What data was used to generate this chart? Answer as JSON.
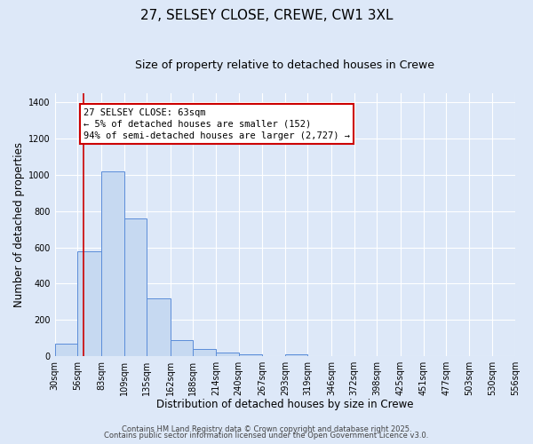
{
  "title": "27, SELSEY CLOSE, CREWE, CW1 3XL",
  "subtitle": "Size of property relative to detached houses in Crewe",
  "xlabel": "Distribution of detached houses by size in Crewe",
  "ylabel": "Number of detached properties",
  "bar_values": [
    70,
    580,
    1020,
    760,
    320,
    90,
    40,
    20,
    10,
    0,
    10,
    0,
    0,
    0,
    0,
    0,
    0,
    0,
    0,
    0
  ],
  "bin_edges": [
    30,
    56,
    83,
    109,
    135,
    162,
    188,
    214,
    240,
    267,
    293,
    319,
    346,
    372,
    398,
    425,
    451,
    477,
    503,
    530,
    556
  ],
  "tick_labels": [
    "30sqm",
    "56sqm",
    "83sqm",
    "109sqm",
    "135sqm",
    "162sqm",
    "188sqm",
    "214sqm",
    "240sqm",
    "267sqm",
    "293sqm",
    "319sqm",
    "346sqm",
    "372sqm",
    "398sqm",
    "425sqm",
    "451sqm",
    "477sqm",
    "503sqm",
    "530sqm",
    "556sqm"
  ],
  "bar_color": "#c6d9f1",
  "bar_edge_color": "#5b8dd9",
  "background_color": "#dde8f8",
  "plot_bg_color": "#dde8f8",
  "grid_color": "#ffffff",
  "red_line_x": 63,
  "ylim": [
    0,
    1450
  ],
  "yticks": [
    0,
    200,
    400,
    600,
    800,
    1000,
    1200,
    1400
  ],
  "annotation_title": "27 SELSEY CLOSE: 63sqm",
  "annotation_line1": "← 5% of detached houses are smaller (152)",
  "annotation_line2": "94% of semi-detached houses are larger (2,727) →",
  "annotation_box_color": "#ffffff",
  "annotation_box_edge_color": "#cc0000",
  "footer_line1": "Contains HM Land Registry data © Crown copyright and database right 2025.",
  "footer_line2": "Contains public sector information licensed under the Open Government Licence v3.0.",
  "title_fontsize": 11,
  "subtitle_fontsize": 9,
  "axis_label_fontsize": 8.5,
  "tick_fontsize": 7,
  "annotation_fontsize": 7.5,
  "footer_fontsize": 6
}
